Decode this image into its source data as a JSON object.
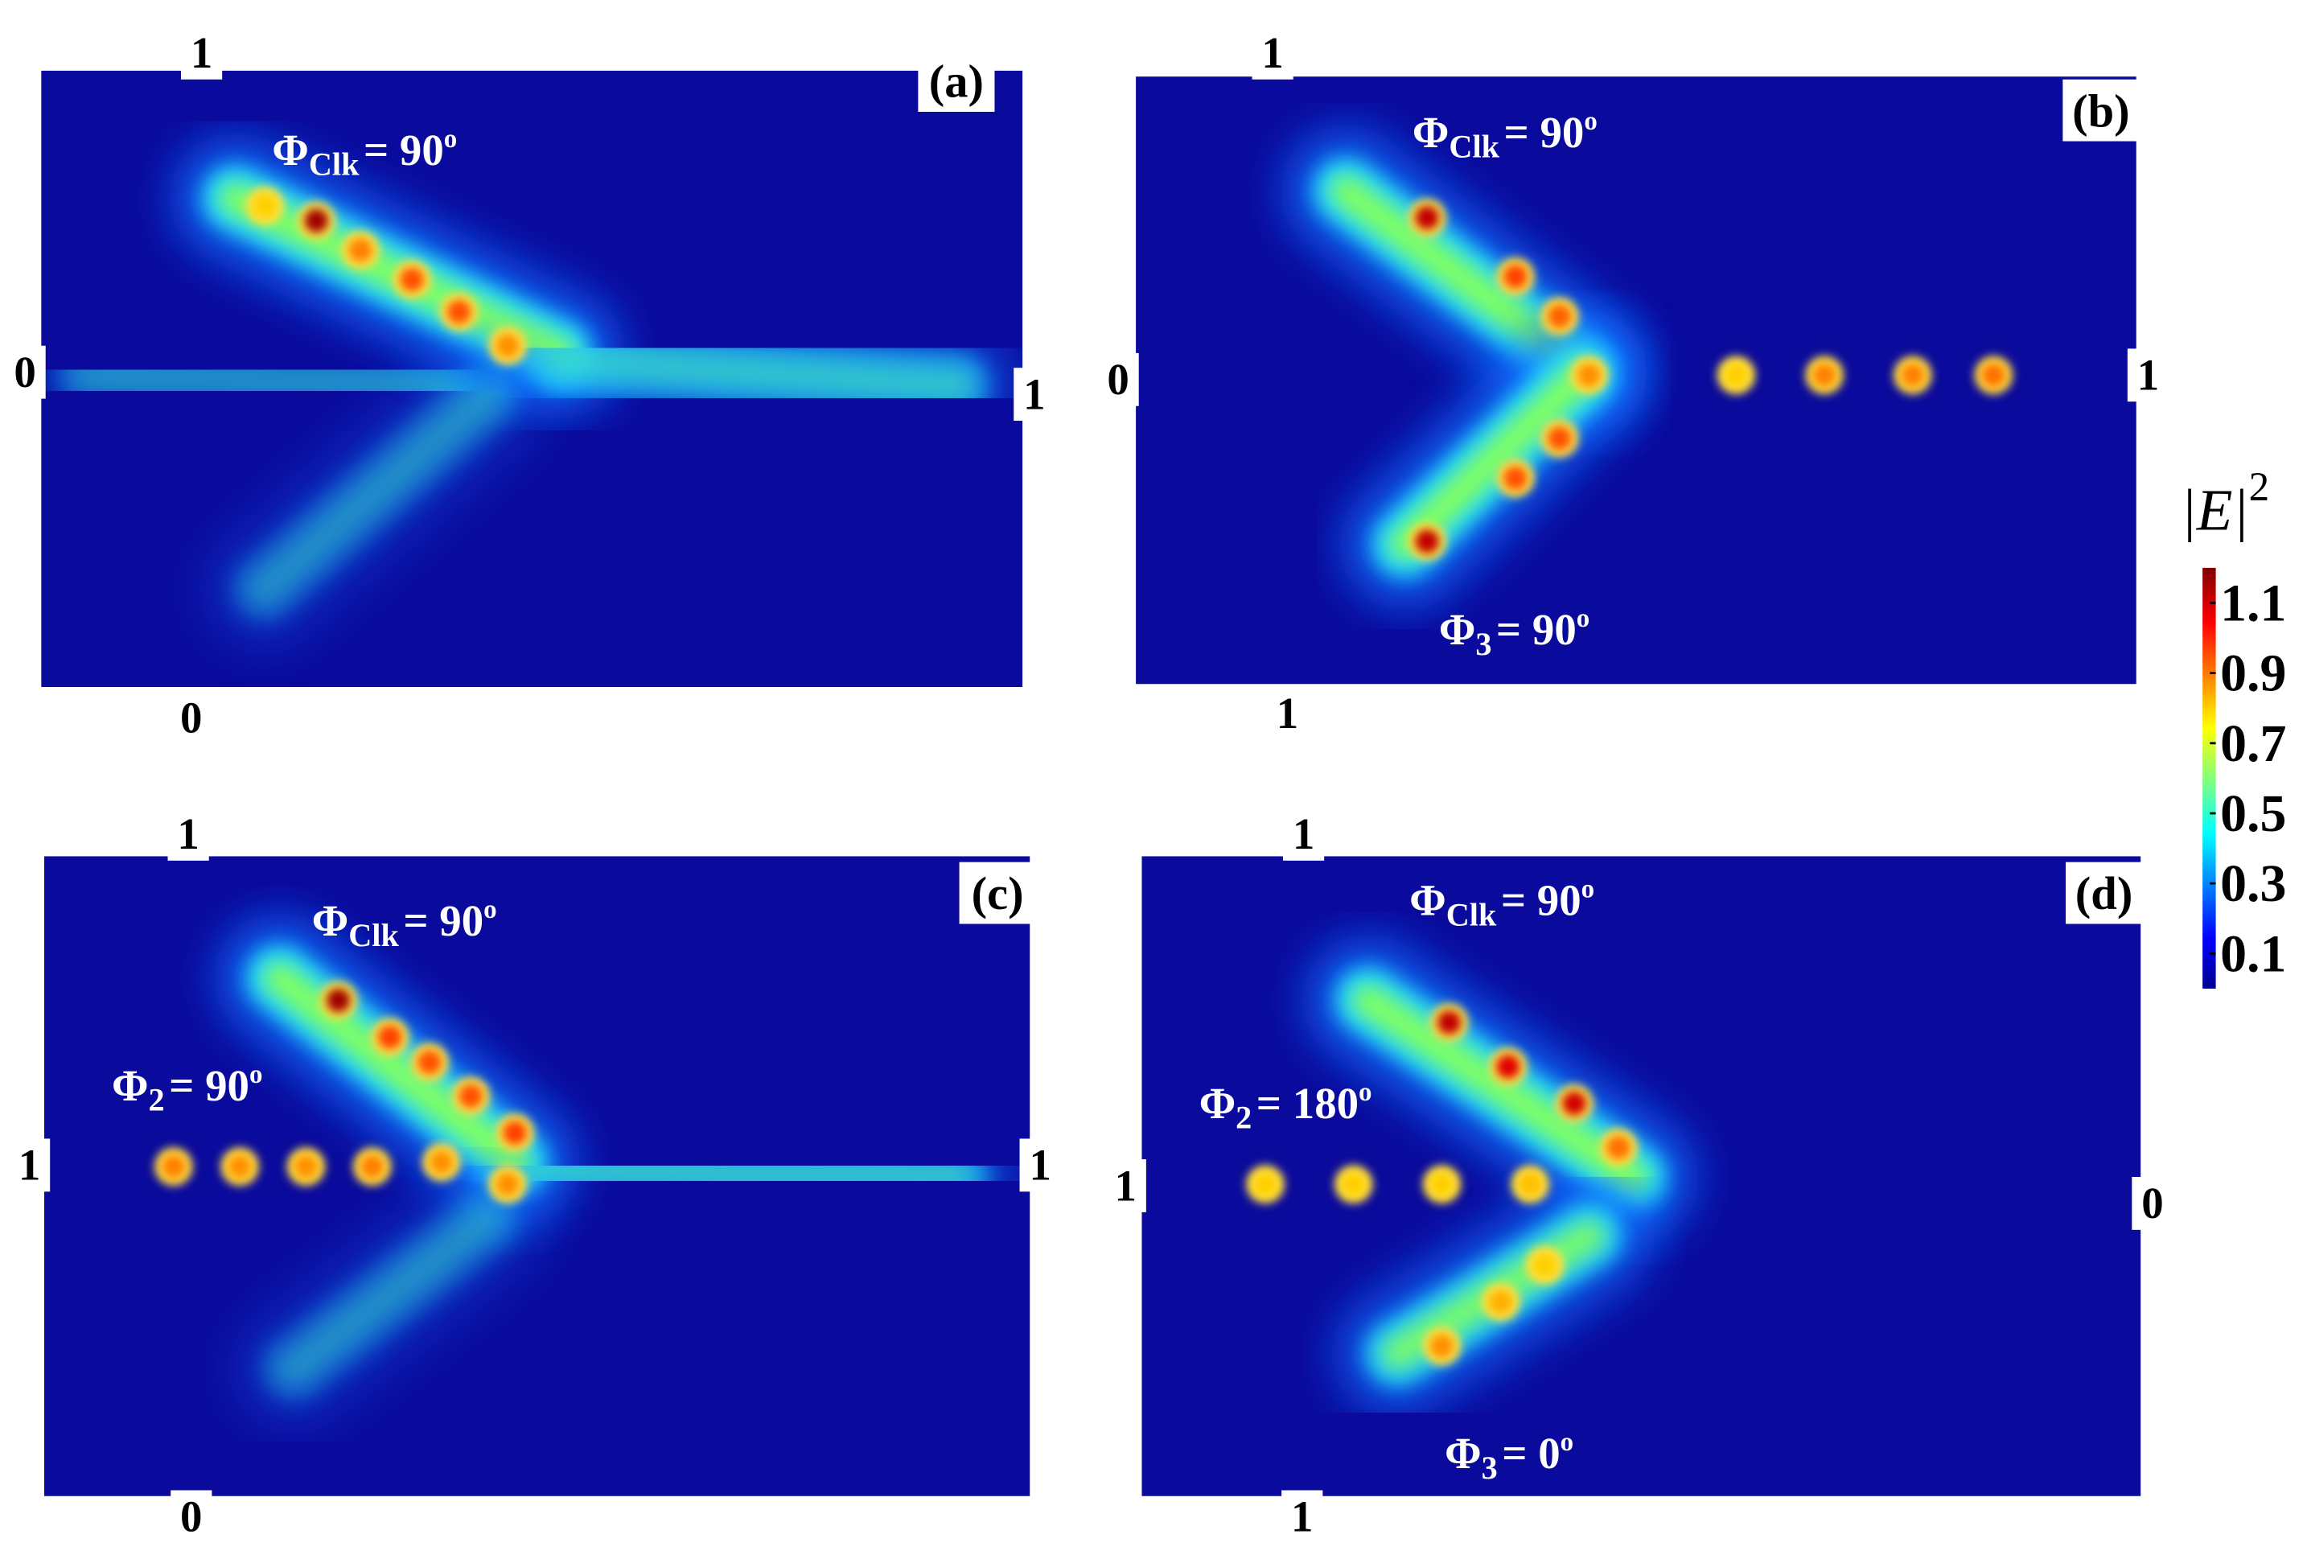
{
  "panels": [
    {
      "label": "(a)",
      "ports": {
        "top": "1",
        "bottom": "0",
        "left": "0",
        "right": "1"
      },
      "phases": [
        {
          "symbol": "Φ",
          "subscript": "Clk",
          "value": "= 90",
          "superscript": "o"
        }
      ]
    },
    {
      "label": "(b)",
      "ports": {
        "top": "1",
        "bottom": "1",
        "left": "0",
        "right": "1"
      },
      "phases": [
        {
          "symbol": "Φ",
          "subscript": "Clk",
          "value": "= 90",
          "superscript": "o"
        },
        {
          "symbol": "Φ",
          "subscript": "3",
          "value": "= 90",
          "superscript": "o"
        }
      ]
    },
    {
      "label": "(c)",
      "ports": {
        "top": "1",
        "bottom": "0",
        "left": "1",
        "right": "1"
      },
      "phases": [
        {
          "symbol": "Φ",
          "subscript": "Clk",
          "value": "= 90",
          "superscript": "o"
        },
        {
          "symbol": "Φ",
          "subscript": "2",
          "value": "= 90",
          "superscript": "o"
        }
      ]
    },
    {
      "label": "(d)",
      "ports": {
        "top": "1",
        "bottom": "1",
        "left": "1",
        "right": "0"
      },
      "phases": [
        {
          "symbol": "Φ",
          "subscript": "Clk",
          "value": "= 90",
          "superscript": "o"
        },
        {
          "symbol": "Φ",
          "subscript": "2",
          "value": "= 180",
          "superscript": "o"
        },
        {
          "symbol": "Φ",
          "subscript": "3",
          "value": "= 0",
          "superscript": "o"
        }
      ]
    }
  ],
  "colorbar": {
    "label": "|E|",
    "exponent": "2",
    "ticks": [
      0.1,
      0.3,
      0.5,
      0.7,
      0.9,
      1.1
    ],
    "lim": [
      0,
      1.2
    ]
  }
}
